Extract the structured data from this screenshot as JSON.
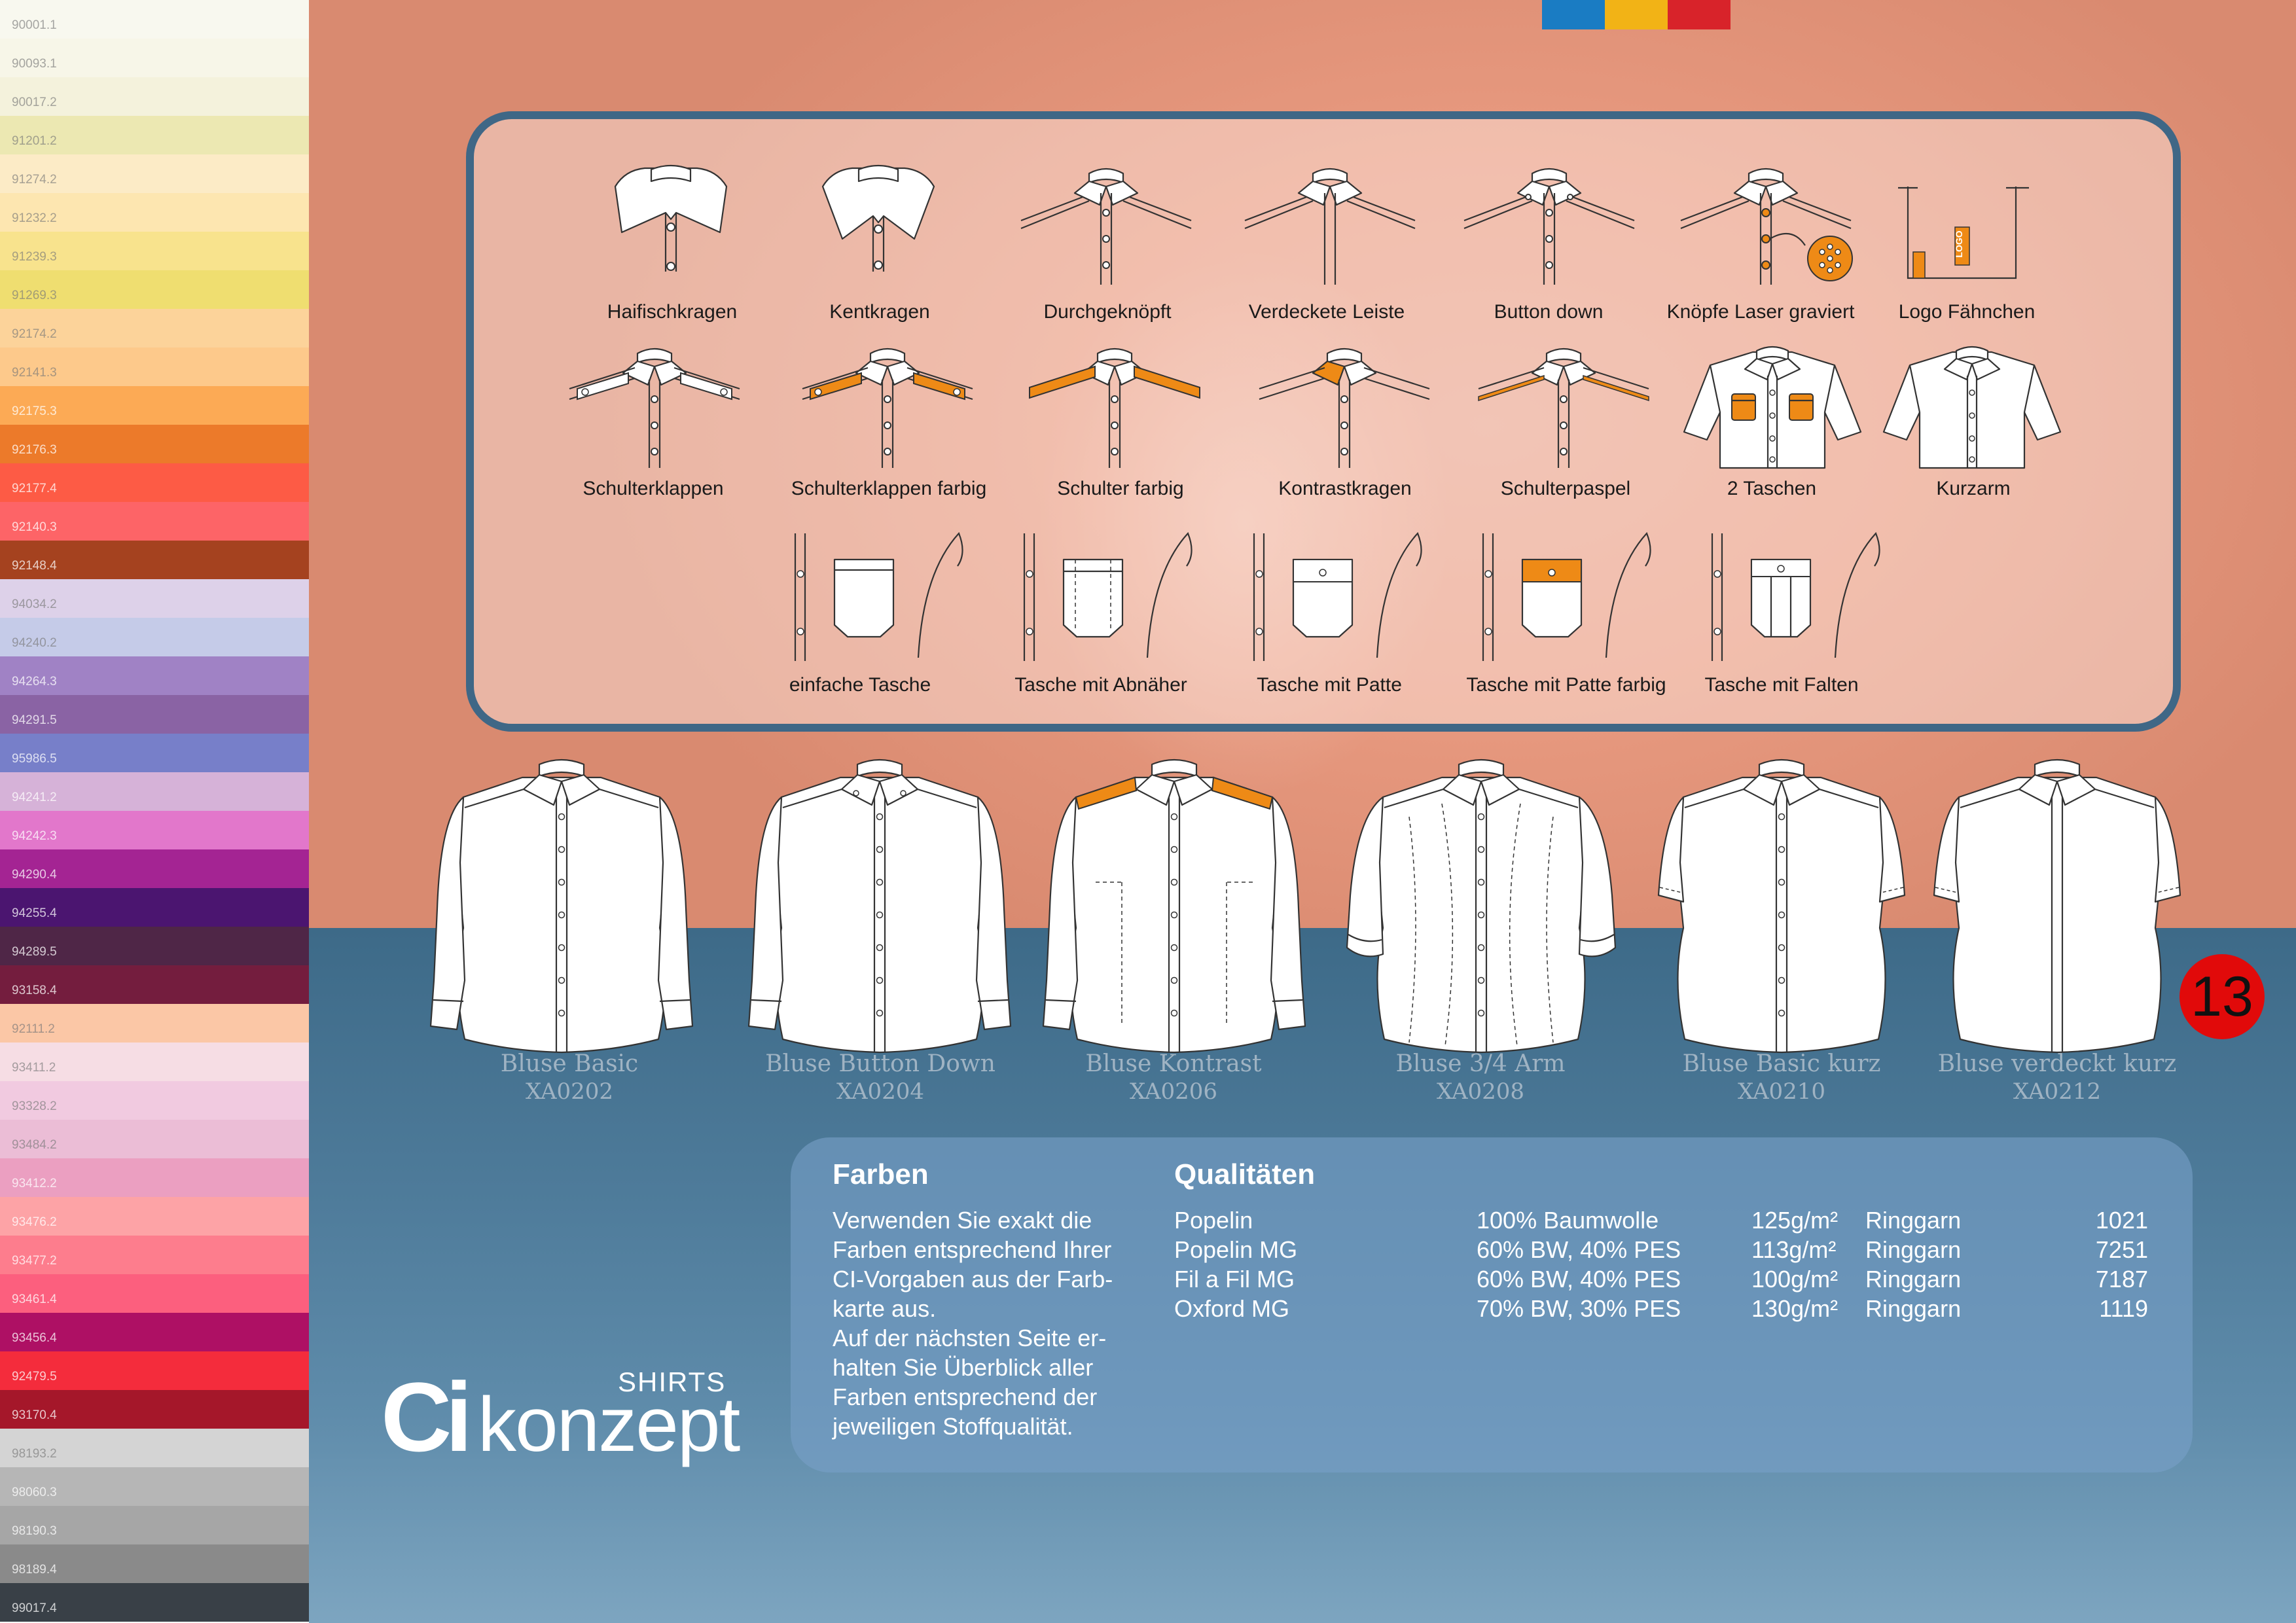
{
  "palette": [
    {
      "code": "90001.1",
      "color": "#f8f8ef"
    },
    {
      "code": "90093.1",
      "color": "#f7f6e8"
    },
    {
      "code": "90017.2",
      "color": "#f4f2dc"
    },
    {
      "code": "91201.2",
      "color": "#ece8b2"
    },
    {
      "code": "91274.2",
      "color": "#fcebc6"
    },
    {
      "code": "91232.2",
      "color": "#fde6b0"
    },
    {
      "code": "91239.3",
      "color": "#f8e38d"
    },
    {
      "code": "91269.3",
      "color": "#efde70"
    },
    {
      "code": "92174.2",
      "color": "#fcd39a"
    },
    {
      "code": "92141.3",
      "color": "#fdc98b"
    },
    {
      "code": "92175.3",
      "color": "#fcaa55"
    },
    {
      "code": "92176.3",
      "color": "#ec7a2a"
    },
    {
      "code": "92177.4",
      "color": "#fd5b45"
    },
    {
      "code": "92140.3",
      "color": "#fd6467"
    },
    {
      "code": "92148.4",
      "color": "#a5421f"
    },
    {
      "code": "94034.2",
      "color": "#ddd1e9"
    },
    {
      "code": "94240.2",
      "color": "#c5cbe8"
    },
    {
      "code": "94264.3",
      "color": "#a082c5"
    },
    {
      "code": "94291.5",
      "color": "#8a63a4"
    },
    {
      "code": "95986.5",
      "color": "#777fc9"
    },
    {
      "code": "94241.2",
      "color": "#d6b2d8"
    },
    {
      "code": "94242.3",
      "color": "#e277cb"
    },
    {
      "code": "94290.4",
      "color": "#a42493"
    },
    {
      "code": "94255.4",
      "color": "#4b1570"
    },
    {
      "code": "94289.5",
      "color": "#4f2647"
    },
    {
      "code": "93158.4",
      "color": "#741d3e"
    },
    {
      "code": "92111.2",
      "color": "#fbc7a6"
    },
    {
      "code": "93411.2",
      "color": "#f6dde4"
    },
    {
      "code": "93328.2",
      "color": "#f1cae0"
    },
    {
      "code": "93484.2",
      "color": "#ebbdd6"
    },
    {
      "code": "93412.2",
      "color": "#eb9fc1"
    },
    {
      "code": "93476.2",
      "color": "#fda3a6"
    },
    {
      "code": "93477.2",
      "color": "#fd7d8d"
    },
    {
      "code": "93461.4",
      "color": "#fc5f7e"
    },
    {
      "code": "93456.4",
      "color": "#ae1064"
    },
    {
      "code": "92479.5",
      "color": "#f42c3c"
    },
    {
      "code": "93170.4",
      "color": "#a5172a"
    },
    {
      "code": "98193.2",
      "color": "#d4d4d4"
    },
    {
      "code": "98060.3",
      "color": "#b6b6b6"
    },
    {
      "code": "98190.3",
      "color": "#a6a6a6"
    },
    {
      "code": "98189.4",
      "color": "#8a8a8a"
    },
    {
      "code": "99017.4",
      "color": "#394047"
    }
  ],
  "color_bar": [
    "#1a7cc3",
    "#f2b316",
    "#d8232a"
  ],
  "accent_orange": "#ee8a16",
  "details": {
    "row1": [
      {
        "label": "Haifischkragen",
        "icon": "haifischkragen-icon"
      },
      {
        "label": "Kentkragen",
        "icon": "kentkragen-icon"
      },
      {
        "label": "Durchgeknöpft",
        "icon": "durchgeknoepft-icon"
      },
      {
        "label": "Verdeckete Leiste",
        "icon": "verdeckte-leiste-icon"
      },
      {
        "label": "Button down",
        "icon": "button-down-icon"
      },
      {
        "label": "Knöpfe Laser graviert",
        "icon": "knoepfe-laser-icon"
      },
      {
        "label": "Logo Fähnchen",
        "icon": "logo-faehnchen-icon"
      }
    ],
    "row2": [
      {
        "label": "Schulterklappen",
        "icon": "schulterklappen-icon"
      },
      {
        "label": "Schulterklappen farbig",
        "icon": "schulterklappen-farbig-icon"
      },
      {
        "label": "Schulter farbig",
        "icon": "schulter-farbig-icon"
      },
      {
        "label": "Kontrastkragen",
        "icon": "kontrastkragen-icon"
      },
      {
        "label": "Schulterpaspel",
        "icon": "schulterpaspel-icon"
      },
      {
        "label": "2 Taschen",
        "icon": "zwei-taschen-icon"
      },
      {
        "label": "Kurzarm",
        "icon": "kurzarm-icon"
      }
    ],
    "row3": [
      {
        "label": "einfache Tasche",
        "icon": "einfache-tasche-icon"
      },
      {
        "label": "Tasche mit Abnäher",
        "icon": "tasche-abnaeher-icon"
      },
      {
        "label": "Tasche mit Patte",
        "icon": "tasche-patte-icon"
      },
      {
        "label": "Tasche mit Patte farbig",
        "icon": "tasche-patte-farbig-icon"
      },
      {
        "label": "Tasche mit Falten",
        "icon": "tasche-falten-icon"
      }
    ],
    "logo_tag_text": "LOGO"
  },
  "models": [
    {
      "name": "Bluse Basic",
      "code": "XA0202"
    },
    {
      "name": "Bluse Button Down",
      "code": "XA0204"
    },
    {
      "name": "Bluse Kontrast",
      "code": "XA0206"
    },
    {
      "name": "Bluse 3/4 Arm",
      "code": "XA0208"
    },
    {
      "name": "Bluse Basic kurz",
      "code": "XA0210"
    },
    {
      "name": "Bluse verdeckt kurz",
      "code": "XA0212"
    }
  ],
  "page_number": "13",
  "brand": {
    "ci": "Ci",
    "konzept": "konzept",
    "shirts": "SHIRTS"
  },
  "farben": {
    "title": "Farben",
    "lines": [
      "Verwenden Sie exakt die",
      "Farben entsprechend Ihrer",
      "CI-Vorgaben aus der Farb-",
      "karte aus.",
      "Auf der nächsten Seite er-",
      "halten Sie Überblick aller",
      "Farben entsprechend der",
      "jeweiligen Stoffqualität."
    ]
  },
  "qualitaeten": {
    "title": "Qualitäten",
    "rows": [
      {
        "name": "Popelin",
        "composition": "100% Baumwolle",
        "weight": "125g/m²",
        "yarn": "Ringgarn",
        "number": "1021"
      },
      {
        "name": "Popelin MG",
        "composition": "60% BW, 40% PES",
        "weight": "113g/m²",
        "yarn": "Ringgarn",
        "number": "7251"
      },
      {
        "name": "Fil a Fil MG",
        "composition": "60% BW, 40% PES",
        "weight": "100g/m²",
        "yarn": "Ringgarn",
        "number": "7187"
      },
      {
        "name": "Oxford MG",
        "composition": "70% BW, 30% PES",
        "weight": "130g/m²",
        "yarn": "Ringgarn",
        "number": "1119"
      }
    ]
  }
}
